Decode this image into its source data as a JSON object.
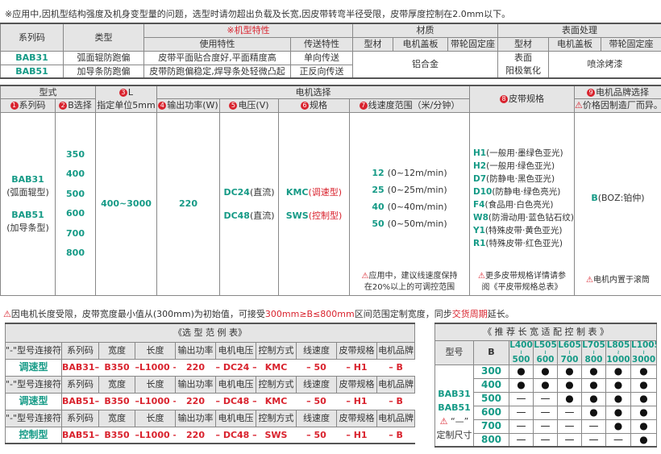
{
  "top_note": "※应用中,因机型结构强度及机身变型量的问题，选型时请勿超出负载及长宽,因皮带转弯半径受限，皮带厚度控制在2.0mm以下。",
  "t1": {
    "h_series": "系列码",
    "h_type": "类型",
    "h_model": "※机型特性",
    "h_use": "使用特性",
    "h_trans": "传送特性",
    "h_material": "材质",
    "h_surface": "表面处理",
    "h_profile": "型材",
    "h_cover": "电机盖板",
    "h_seat": "带轮固定座",
    "rows": [
      {
        "code": "BAB31",
        "type": "弧面辊防跑偏",
        "use": "皮带平面贴合度好,平面精度高",
        "trans": "单向传送"
      },
      {
        "code": "BAB51",
        "type": "加导条防跑偏",
        "use": "皮带防跑偏稳定,焊导条处轻微凸起",
        "trans": "正反向传送"
      }
    ],
    "material": "铝合金",
    "surface_profile_1": "表面",
    "surface_profile_2": "阳极氧化",
    "surface_other": "喷涂烤漆"
  },
  "t2": {
    "h_form": "型式",
    "h_series": "系列码",
    "h_b": "B选择",
    "h_l": "L",
    "h_l_unit": "指定单位5mm",
    "h_motor": "电机选择",
    "h_power": "输出功率(W)",
    "h_voltage": "电压(V)",
    "h_spec": "规格",
    "h_speed": "线速度范围（米/分钟）",
    "h_belt": "皮带规格",
    "h_brand": "电机品牌选择",
    "h_brand_note": "价格因制造厂而异。",
    "series": [
      {
        "code": "BAB31",
        "desc": "(弧面辊型)"
      },
      {
        "code": "BAB51",
        "desc": "(加导条型)"
      }
    ],
    "b_values": [
      "350",
      "400",
      "500",
      "600",
      "700",
      "800"
    ],
    "l_range": "400~3000",
    "power": "220",
    "voltages": [
      {
        "code": "DC24",
        "desc": "(直流)"
      },
      {
        "code": "DC48",
        "desc": "(直流)"
      }
    ],
    "specs": [
      {
        "code": "KMC",
        "desc": "(调速型)"
      },
      {
        "code": "SWS",
        "desc": "(控制型)"
      }
    ],
    "speeds": [
      {
        "code": "12",
        "desc": "(0~12m/min)"
      },
      {
        "code": "25",
        "desc": "(0~25m/min)"
      },
      {
        "code": "40",
        "desc": "(0~40m/min)"
      },
      {
        "code": "50",
        "desc": "(0~50m/min)"
      }
    ],
    "speed_note_1": "应用中，建议线速度保持",
    "speed_note_2": "在20%以上的可调控范围",
    "belts": [
      {
        "code": "H1",
        "desc": "(一般用·墨绿色亚光)"
      },
      {
        "code": "H2",
        "desc": "(一般用·绿色亚光)"
      },
      {
        "code": "D7",
        "desc": "(防静电·黑色亚光)"
      },
      {
        "code": "D10",
        "desc": "(防静电·绿色亮光)"
      },
      {
        "code": "F4",
        "desc": "(食品用·白色亮光)"
      },
      {
        "code": "W8",
        "desc": "(防滑动用·蓝色钻石纹)"
      },
      {
        "code": "Y1",
        "desc": "(特殊皮带·黄色亚光)"
      },
      {
        "code": "R1",
        "desc": "(特殊皮带·红色亚光)"
      }
    ],
    "belt_note_1": "更多皮带规格详情请参",
    "belt_note_2": "阅《平皮带规格总表》",
    "brand": {
      "code": "B",
      "desc": "(BOZ:铂仲)"
    },
    "brand_note": "电机内置于滚筒"
  },
  "mid_note": {
    "a": "因电机长度受限，皮带宽度最小值从(300mm)为初始值，可接受",
    "b": "300mm≥B≤800mm",
    "c": "区间范围定制宽度，同步",
    "d": "交货周期",
    "e": "延长。"
  },
  "example": {
    "title": "《选 型 范 例 表》",
    "headers": [
      "\"-\"型号连接符",
      "系列码",
      "宽度",
      "长度",
      "输出功率",
      "电机电压",
      "控制方式",
      "线速度",
      "皮带规格",
      "电机品牌"
    ],
    "rows": [
      {
        "label": "调速型",
        "values": [
          "BAB31–",
          "B350",
          "–L1000 –",
          "220",
          "– DC24 –",
          "KMC",
          "–  50",
          "–   H1",
          "–   B"
        ]
      },
      {
        "label": "调速型",
        "values": [
          "BAB51–",
          "B350",
          "–L1000 –",
          "220",
          "– DC48 –",
          "KMC",
          "–  50",
          "–   H1",
          "–   B"
        ]
      },
      {
        "label": "控制型",
        "values": [
          "BAB51–",
          "B350",
          "–L1000 –",
          "220",
          "– DC48 –",
          "SWS",
          "–  50",
          "–   H1",
          "–   B"
        ]
      }
    ]
  },
  "recommend": {
    "title": "《 推 荐 长 宽 适 配 控 制 表 》",
    "h_model": "型号",
    "h_b": "B",
    "lengths": [
      [
        "L400",
        "500"
      ],
      [
        "L505",
        "600"
      ],
      [
        "L605",
        "700"
      ],
      [
        "L705",
        "800"
      ],
      [
        "L805",
        "1000"
      ],
      [
        "L1005",
        "3000"
      ]
    ],
    "models": [
      "BAB31",
      "BAB51"
    ],
    "custom_mark": "“—”",
    "custom_label": "定制尺寸",
    "widths": [
      "300",
      "400",
      "500",
      "600",
      "700",
      "800"
    ],
    "matrix": [
      [
        "●",
        "●",
        "●",
        "●",
        "●",
        "●"
      ],
      [
        "●",
        "●",
        "●",
        "●",
        "●",
        "●"
      ],
      [
        "—",
        "—",
        "●",
        "●",
        "●",
        "●"
      ],
      [
        "—",
        "—",
        "—",
        "●",
        "●",
        "●"
      ],
      [
        "—",
        "—",
        "—",
        "—",
        "●",
        "●"
      ],
      [
        "—",
        "—",
        "—",
        "—",
        "—",
        "●"
      ]
    ]
  },
  "colors": {
    "accent": "#159a86",
    "highlight": "#d9232e",
    "header_bg": "#e5e5e5"
  }
}
